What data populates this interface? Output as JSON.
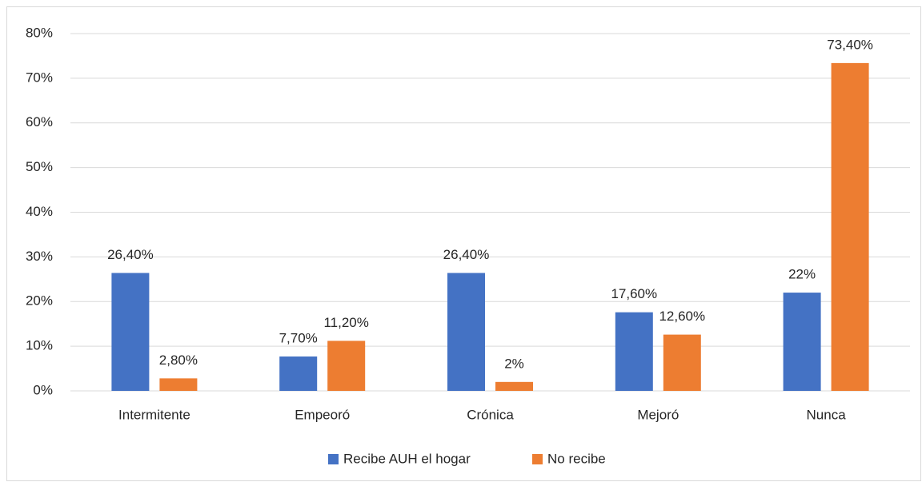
{
  "chart_data": {
    "type": "bar",
    "categories": [
      "Intermitente",
      "Empeoró",
      "Crónica",
      "Mejoró",
      "Nunca"
    ],
    "series": [
      {
        "name": "Recibe AUH el hogar",
        "color": "#4472c4",
        "values": [
          26.4,
          7.7,
          26.4,
          17.6,
          22
        ],
        "value_labels": [
          "26,40%",
          "7,70%",
          "26,40%",
          "17,60%",
          "22%"
        ]
      },
      {
        "name": "No recibe",
        "color": "#ed7d31",
        "values": [
          2.8,
          11.2,
          2,
          12.6,
          73.4
        ],
        "value_labels": [
          "2,80%",
          "11,20%",
          "2%",
          "12,60%",
          "73,40%"
        ]
      }
    ],
    "ylim": [
      0,
      80
    ],
    "yticks": [
      {
        "value": 0,
        "label": "0%"
      },
      {
        "value": 10,
        "label": "10%"
      },
      {
        "value": 20,
        "label": "20%"
      },
      {
        "value": 30,
        "label": "30%"
      },
      {
        "value": 40,
        "label": "40%"
      },
      {
        "value": 50,
        "label": "50%"
      },
      {
        "value": 60,
        "label": "60%"
      },
      {
        "value": 70,
        "label": "70%"
      },
      {
        "value": 80,
        "label": "80%"
      }
    ],
    "grid": true,
    "legend": "bottom"
  }
}
